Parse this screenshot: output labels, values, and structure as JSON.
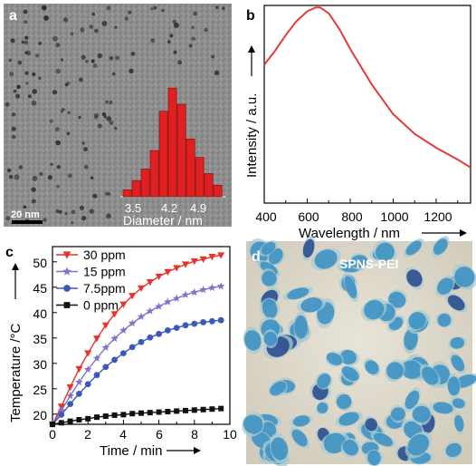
{
  "panels": {
    "a": {
      "label": "a",
      "scale_bar": "20 nm",
      "histogram": {
        "type": "bar",
        "xlabel": "Diameter / nm",
        "tick_labels": [
          "3.5",
          "4.2",
          "4.9"
        ],
        "categories": [
          "3.3",
          "3.5",
          "3.7",
          "3.9",
          "4.1",
          "4.2",
          "4.4",
          "4.6",
          "4.8",
          "4.9",
          "5.1"
        ],
        "values": [
          3,
          7,
          12,
          20,
          37,
          47,
          40,
          25,
          17,
          10,
          5
        ],
        "bar_color": "#e02020"
      }
    },
    "b": {
      "label": "b",
      "type": "line",
      "xlabel": "Wavelength / nm",
      "ylabel": "Intensity / a.u.",
      "xlim": [
        400,
        1360
      ],
      "ylim": [
        0,
        1.0
      ],
      "x_ticks": [
        "400",
        "600",
        "800",
        "1000",
        "1200"
      ],
      "x": [
        400,
        450,
        500,
        550,
        600,
        640,
        660,
        700,
        750,
        800,
        900,
        1000,
        1100,
        1200,
        1300,
        1360
      ],
      "y": [
        0.7,
        0.77,
        0.85,
        0.92,
        0.97,
        0.99,
        0.99,
        0.96,
        0.88,
        0.78,
        0.6,
        0.45,
        0.35,
        0.28,
        0.22,
        0.18
      ],
      "line_color": "#e53a3a"
    },
    "c": {
      "label": "c",
      "type": "line",
      "xlabel": "Time / min",
      "ylabel": "Temperature /°C",
      "xlim": [
        0,
        10
      ],
      "ylim": [
        18,
        53
      ],
      "x_ticks": [
        "0",
        "2",
        "4",
        "6",
        "8",
        "10"
      ],
      "y_ticks": [
        "20",
        "25",
        "30",
        "35",
        "40",
        "45",
        "50"
      ],
      "time": [
        0,
        0.5,
        1,
        1.5,
        2,
        2.5,
        3,
        3.5,
        4,
        4.5,
        5,
        5.5,
        6,
        6.5,
        7,
        7.5,
        8,
        8.5,
        9,
        9.5
      ],
      "series": [
        {
          "name": "30 ppm",
          "color": "#e8322c",
          "marker": "triangle-down",
          "values": [
            18,
            21.5,
            25.3,
            28.9,
            32.0,
            34.9,
            37.5,
            39.7,
            41.6,
            43.3,
            44.8,
            46.0,
            47.1,
            48.0,
            48.8,
            49.5,
            50.1,
            50.5,
            51.0,
            51.3
          ]
        },
        {
          "name": "15 ppm",
          "color": "#8470c8",
          "marker": "star",
          "values": [
            18,
            20.7,
            23.6,
            26.3,
            28.8,
            31.0,
            33.1,
            34.9,
            36.5,
            37.9,
            39.2,
            40.3,
            41.2,
            42.1,
            42.8,
            43.5,
            44.0,
            44.5,
            44.9,
            45.2
          ]
        },
        {
          "name": "7.5ppm",
          "color": "#3a5ab8",
          "marker": "circle",
          "values": [
            18,
            19.9,
            22.0,
            24.0,
            25.9,
            27.7,
            29.3,
            30.7,
            32.0,
            33.2,
            34.2,
            35.1,
            35.8,
            36.5,
            37.0,
            37.5,
            37.8,
            38.1,
            38.3,
            38.5
          ]
        },
        {
          "name": "0 ppm",
          "color": "#111111",
          "marker": "square",
          "values": [
            18,
            18.3,
            18.6,
            18.9,
            19.1,
            19.4,
            19.6,
            19.8,
            19.9,
            20.1,
            20.2,
            20.3,
            20.4,
            20.5,
            20.6,
            20.7,
            20.8,
            20.9,
            21.0,
            21.1
          ]
        }
      ]
    },
    "d": {
      "label": "d",
      "caption": "SPNS-PEI"
    }
  }
}
